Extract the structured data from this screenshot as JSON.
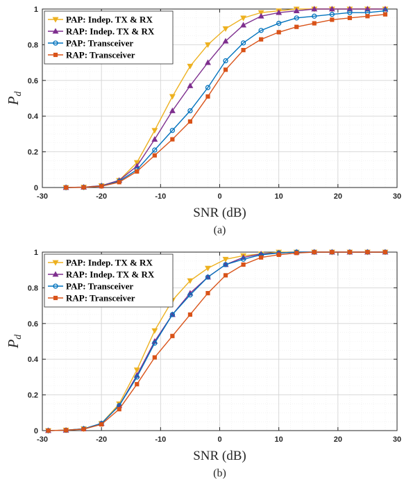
{
  "chart_data": [
    {
      "type": "line",
      "caption": "(a)",
      "xlabel": "SNR (dB)",
      "ylabel": "P",
      "ylabel_sub": "d",
      "xlim": [
        -30,
        30
      ],
      "ylim": [
        0,
        1
      ],
      "xticks": [
        -30,
        -20,
        -10,
        0,
        10,
        20,
        30
      ],
      "yticks": [
        0,
        0.2,
        0.4,
        0.6,
        0.8,
        1
      ],
      "ytick_labels": [
        "0",
        "0.2",
        "0.4",
        "0.6",
        "0.8",
        "1"
      ],
      "grid": true,
      "legend_position": "top-left",
      "x": [
        -26,
        -23,
        -20,
        -17,
        -14,
        -11,
        -8,
        -5,
        -2,
        1,
        4,
        7,
        10,
        13,
        16,
        19,
        22,
        25,
        28
      ],
      "series": [
        {
          "name": "PAP: Indep. TX & RX",
          "color": "#EDB120",
          "marker": "triangle-down",
          "values": [
            0,
            0.002,
            0.01,
            0.04,
            0.14,
            0.32,
            0.51,
            0.68,
            0.8,
            0.89,
            0.95,
            0.98,
            0.99,
            1.0,
            1.0,
            1.0,
            1.0,
            1.0,
            1.0
          ]
        },
        {
          "name": "RAP: Indep. TX & RX",
          "color": "#7E2F8E",
          "marker": "triangle-up",
          "values": [
            0,
            0.002,
            0.01,
            0.04,
            0.12,
            0.27,
            0.43,
            0.57,
            0.7,
            0.82,
            0.91,
            0.96,
            0.98,
            0.99,
            1.0,
            1.0,
            1.0,
            1.0,
            1.0
          ]
        },
        {
          "name": "PAP: Transceiver",
          "color": "#0072BD",
          "marker": "circle",
          "values": [
            0,
            0.001,
            0.008,
            0.035,
            0.1,
            0.21,
            0.32,
            0.43,
            0.56,
            0.71,
            0.81,
            0.88,
            0.92,
            0.95,
            0.96,
            0.97,
            0.98,
            0.98,
            0.99
          ]
        },
        {
          "name": "RAP: Transceiver",
          "color": "#D95319",
          "marker": "square",
          "values": [
            0,
            0.001,
            0.007,
            0.03,
            0.09,
            0.18,
            0.27,
            0.37,
            0.51,
            0.66,
            0.77,
            0.83,
            0.87,
            0.9,
            0.92,
            0.94,
            0.95,
            0.96,
            0.97
          ]
        }
      ]
    },
    {
      "type": "line",
      "caption": "(b)",
      "xlabel": "SNR (dB)",
      "ylabel": "P",
      "ylabel_sub": "d",
      "xlim": [
        -30,
        30
      ],
      "ylim": [
        0,
        1
      ],
      "xticks": [
        -30,
        -20,
        -10,
        0,
        10,
        20,
        30
      ],
      "yticks": [
        0,
        0.2,
        0.4,
        0.6,
        0.8,
        1
      ],
      "ytick_labels": [
        "0",
        "0.2",
        "0.4",
        "0.6",
        "0.8",
        "1"
      ],
      "grid": true,
      "legend_position": "top-left",
      "x": [
        -29,
        -26,
        -23,
        -20,
        -17,
        -14,
        -11,
        -8,
        -5,
        -2,
        1,
        4,
        7,
        10,
        13,
        16,
        19,
        22,
        25,
        28
      ],
      "series": [
        {
          "name": "PAP: Indep. TX & RX",
          "color": "#EDB120",
          "marker": "triangle-down",
          "values": [
            0,
            0.003,
            0.01,
            0.04,
            0.15,
            0.34,
            0.56,
            0.73,
            0.84,
            0.91,
            0.96,
            0.98,
            0.99,
            1.0,
            1.0,
            1.0,
            1.0,
            1.0,
            1.0,
            1.0
          ]
        },
        {
          "name": "RAP: Indep. TX & RX",
          "color": "#7E2F8E",
          "marker": "triangle-up",
          "values": [
            0,
            0.002,
            0.01,
            0.04,
            0.14,
            0.31,
            0.5,
            0.65,
            0.77,
            0.86,
            0.93,
            0.97,
            0.99,
            0.995,
            1.0,
            1.0,
            1.0,
            1.0,
            1.0,
            1.0
          ]
        },
        {
          "name": "PAP: Transceiver",
          "color": "#0072BD",
          "marker": "circle",
          "values": [
            0,
            0.002,
            0.01,
            0.04,
            0.14,
            0.3,
            0.49,
            0.65,
            0.76,
            0.86,
            0.93,
            0.96,
            0.985,
            0.995,
            1.0,
            1.0,
            1.0,
            1.0,
            1.0,
            1.0
          ]
        },
        {
          "name": "RAP: Transceiver",
          "color": "#D95319",
          "marker": "square",
          "values": [
            0,
            0.002,
            0.008,
            0.035,
            0.12,
            0.26,
            0.41,
            0.53,
            0.65,
            0.77,
            0.87,
            0.93,
            0.97,
            0.985,
            0.995,
            1.0,
            1.0,
            1.0,
            1.0,
            1.0
          ]
        }
      ]
    }
  ]
}
